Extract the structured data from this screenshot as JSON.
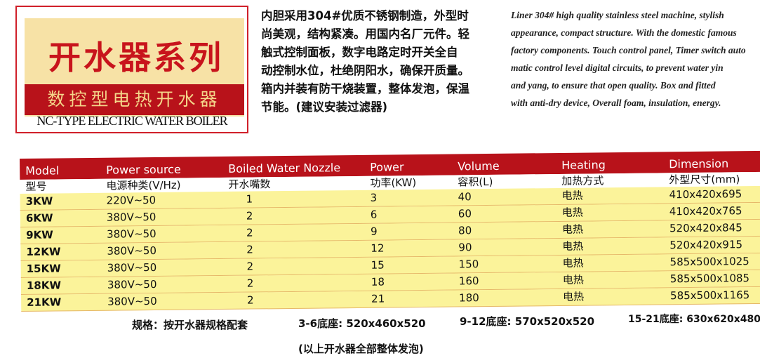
{
  "logo": {
    "title": "开水器系列",
    "subtitle": "数控型电热开水器",
    "english": "NC-TYPE ELECTRIC WATER BOILER"
  },
  "description_cn": [
    "内胆采用304#优质不锈钢制造，外型时",
    "尚美观，结构紧凑。用国内名厂元件。轻",
    "触式控制面板，数字电路定时开关全自",
    "动控制水位，杜绝阴阳水，确保开质量。",
    "箱内并装有防干烧装置，整体发泡，保温",
    "节能。(建议安装过滤器)"
  ],
  "description_en": [
    "Liner 304# high quality stainless steel machine, stylish",
    "appearance, compact structure. With the domestic famous",
    "factory components. Touch control panel, Timer switch auto",
    "matic control level digital circuits, to prevent water yin",
    "and yang, to ensure that open quality. Box and fitted",
    "with anti-dry device, Overall foam, insulation, energy."
  ],
  "table": {
    "headers_en": [
      "Model",
      "Power source",
      "Boiled Water Nozzle",
      "Power",
      "Volume",
      "Heating",
      "Dimension"
    ],
    "headers_cn": [
      "型号",
      "电源种类(V/Hz)",
      "开水嘴数",
      "功率(KW)",
      "容积(L)",
      "加热方式",
      "外型尺寸(mm)"
    ],
    "rows": [
      [
        "3KW",
        "220V~50",
        "1",
        "3",
        "40",
        "电热",
        "410x420x695"
      ],
      [
        "6KW",
        "380V~50",
        "2",
        "6",
        "60",
        "电热",
        "410x420x765"
      ],
      [
        "9KW",
        "380V~50",
        "2",
        "9",
        "80",
        "电热",
        "520x420x845"
      ],
      [
        "12KW",
        "380V~50",
        "2",
        "12",
        "90",
        "电热",
        "520x420x915"
      ],
      [
        "15KW",
        "380V~50",
        "2",
        "15",
        "150",
        "电热",
        "585x500x1025"
      ],
      [
        "18KW",
        "380V~50",
        "2",
        "18",
        "160",
        "电热",
        "585x500x1085"
      ],
      [
        "21KW",
        "380V~50",
        "2",
        "21",
        "180",
        "电热",
        "585x500x1165"
      ]
    ]
  },
  "footer": {
    "spec": "规格：按开水器规格配套",
    "base1": "3-6底座: 520x460x520",
    "base2": "9-12底座: 570x520x520",
    "base3": "15-21底座: 630x620x480",
    "note": "(以上开水器全部整体发泡)"
  },
  "colors": {
    "brand_red": "#b8121a",
    "row_yellow": "#fbf39a"
  }
}
